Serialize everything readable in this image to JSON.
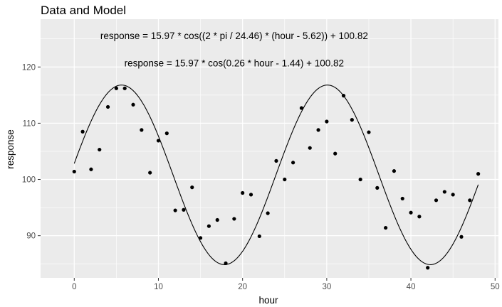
{
  "chart_data": {
    "type": "scatter",
    "title": "Data and Model",
    "xlabel": "hour",
    "ylabel": "response",
    "xlim": [
      -4,
      50.4
    ],
    "ylim": [
      82.5,
      128.5
    ],
    "x_ticks": [
      0,
      10,
      20,
      30,
      40,
      50
    ],
    "y_ticks": [
      90,
      100,
      110,
      120
    ],
    "grid": true,
    "background": "#ebebeb",
    "point_color": "#000000",
    "line_color": "#000000",
    "annotations": [
      "response = 15.97 * cos((2 * pi / 24.46) * (hour - 5.62)) + 100.82",
      "response = 15.97 * cos(0.26 * hour - 1.44) + 100.82"
    ],
    "model": {
      "amplitude": 15.97,
      "period": 24.46,
      "phase": 5.62,
      "mesor": 100.82
    },
    "series": [
      {
        "type": "scatter",
        "x": [
          0,
          1,
          2,
          3,
          4,
          5,
          6,
          7,
          8,
          9,
          10,
          11,
          12,
          13,
          14,
          15,
          16,
          17,
          18,
          19,
          20,
          21,
          22,
          23,
          24,
          25,
          26,
          27,
          28,
          29,
          30,
          31,
          32,
          33,
          34,
          35,
          36,
          37,
          38,
          39,
          40,
          41,
          42,
          43,
          44,
          45,
          46,
          47,
          48
        ],
        "y": [
          101.4,
          108.5,
          101.8,
          105.3,
          112.9,
          116.2,
          116.2,
          113.3,
          108.8,
          101.2,
          106.9,
          108.2,
          94.5,
          94.6,
          98.6,
          89.6,
          91.7,
          92.8,
          85.1,
          93.0,
          97.6,
          97.3,
          89.9,
          94.0,
          103.3,
          100.0,
          103.0,
          112.7,
          105.6,
          108.8,
          110.3,
          104.6,
          114.9,
          110.6,
          100.0,
          108.4,
          98.5,
          91.4,
          101.5,
          96.6,
          94.1,
          93.4,
          84.3,
          96.3,
          97.8,
          97.3,
          89.8,
          96.3,
          101.0
        ]
      },
      {
        "type": "line",
        "x_range": [
          0,
          48
        ]
      }
    ]
  }
}
